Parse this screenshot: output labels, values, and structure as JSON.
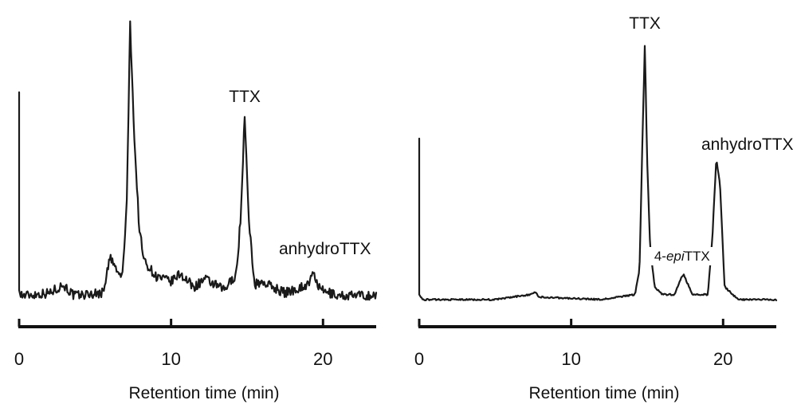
{
  "chart_data": [
    {
      "type": "line",
      "title": "",
      "xlabel": "Retention time (min)",
      "ylabel": "",
      "xlim": [
        0,
        23.5
      ],
      "x_ticks": [
        0,
        10,
        20
      ],
      "x_tick_labels": [
        "0",
        "10",
        "20"
      ],
      "grid": false,
      "baseline_noise": true,
      "series": [
        {
          "values_note": "relative detector response (0 = baseline, 1 = tallest peak)",
          "x": [
            0,
            0.05,
            0.2,
            2,
            2.9,
            3.6,
            5.5,
            6.0,
            6.5,
            6.8,
            7.1,
            7.3,
            7.6,
            7.9,
            8.2,
            8.6,
            9.0,
            10.0,
            10.6,
            11.5,
            12.2,
            13.5,
            14.3,
            14.6,
            14.85,
            15.1,
            15.5,
            16.0,
            17.5,
            19.0,
            19.4,
            19.8,
            21,
            23.5
          ],
          "y": [
            0.74,
            0.02,
            0.0,
            0.01,
            0.04,
            0.0,
            0.01,
            0.14,
            0.08,
            0.07,
            0.35,
            1.0,
            0.55,
            0.25,
            0.13,
            0.1,
            0.07,
            0.05,
            0.08,
            0.03,
            0.06,
            0.02,
            0.08,
            0.3,
            0.67,
            0.28,
            0.04,
            0.05,
            0.01,
            0.04,
            0.08,
            0.02,
            0.0,
            0.0
          ]
        }
      ],
      "annotations": [
        {
          "text": "TTX",
          "x": 14.85
        },
        {
          "text": "anhydroTTX",
          "x": 19.5
        }
      ]
    },
    {
      "type": "line",
      "title": "",
      "xlabel": "Retention time (min)",
      "ylabel": "",
      "xlim": [
        0,
        23.5
      ],
      "x_ticks": [
        0,
        10,
        20
      ],
      "x_tick_labels": [
        "0",
        "10",
        "20"
      ],
      "grid": false,
      "baseline_noise": false,
      "series": [
        {
          "values_note": "relative detector response (0 = baseline, 1 = tallest peak)",
          "x": [
            0,
            0.05,
            0.2,
            5,
            7.3,
            7.6,
            7.9,
            12,
            14.2,
            14.5,
            14.7,
            14.85,
            15.0,
            15.2,
            15.5,
            16.0,
            16.8,
            17.2,
            17.4,
            17.6,
            18.0,
            19.0,
            19.3,
            19.55,
            19.8,
            20.1,
            21,
            23.5
          ],
          "y": [
            0.63,
            0.02,
            0.0,
            0.0,
            0.02,
            0.03,
            0.01,
            0.0,
            0.02,
            0.12,
            0.65,
            1.0,
            0.55,
            0.2,
            0.05,
            0.02,
            0.02,
            0.08,
            0.1,
            0.07,
            0.02,
            0.02,
            0.25,
            0.55,
            0.45,
            0.05,
            0.0,
            0.0
          ]
        }
      ],
      "annotations": [
        {
          "text": "TTX",
          "x": 14.85
        },
        {
          "text": "anhydroTTX",
          "x": 19.5
        },
        {
          "text": "4-epiTTX",
          "x": 17.3
        }
      ]
    }
  ]
}
